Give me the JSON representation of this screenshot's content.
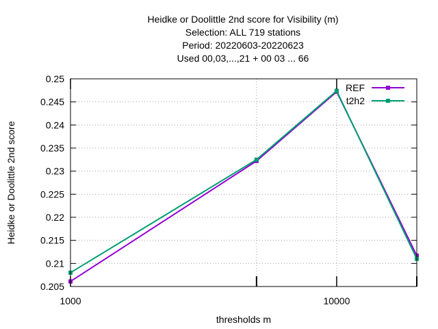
{
  "chart_data": {
    "type": "line",
    "title_lines": [
      "Heidke or Doolittle 2nd score  for Visibility (m)",
      "Selection: ALL    719 stations",
      "Period: 20220603-20220623",
      "Used  00,03,...,21  + 00 03 ... 66"
    ],
    "xlabel": "thresholds m",
    "ylabel": "Heidke or Doolittle 2nd score",
    "x_scale": "log",
    "xlim": [
      1000,
      20000
    ],
    "ylim": [
      0.205,
      0.25
    ],
    "x_ticks": [
      {
        "value": 1000,
        "label": "1000"
      },
      {
        "value": 10000,
        "label": "10000"
      }
    ],
    "x_minor_ticks": [
      5000,
      20000
    ],
    "y_ticks": [
      {
        "value": 0.205,
        "label": "0.205"
      },
      {
        "value": 0.21,
        "label": "0.21"
      },
      {
        "value": 0.215,
        "label": "0.215"
      },
      {
        "value": 0.22,
        "label": "0.22"
      },
      {
        "value": 0.225,
        "label": "0.225"
      },
      {
        "value": 0.23,
        "label": "0.23"
      },
      {
        "value": 0.235,
        "label": "0.235"
      },
      {
        "value": 0.24,
        "label": "0.24"
      },
      {
        "value": 0.245,
        "label": "0.245"
      },
      {
        "value": 0.25,
        "label": "0.25"
      }
    ],
    "grid": true,
    "legend_position": "top-right",
    "series": [
      {
        "name": "REF",
        "color": "#9400d3",
        "x": [
          1000,
          5000,
          10000,
          20000
        ],
        "y": [
          0.2061,
          0.2322,
          0.2472,
          0.2117
        ]
      },
      {
        "name": "t2h2",
        "color": "#009e73",
        "x": [
          1000,
          5000,
          10000,
          20000
        ],
        "y": [
          0.208,
          0.2325,
          0.2474,
          0.211
        ]
      }
    ]
  }
}
